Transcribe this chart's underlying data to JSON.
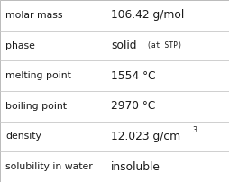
{
  "rows": [
    {
      "label": "molar mass",
      "value_plain": "106.42 g/mol",
      "type": "plain"
    },
    {
      "label": "phase",
      "value_plain": "solid",
      "type": "phase"
    },
    {
      "label": "melting point",
      "value_plain": "1554 °C",
      "type": "plain"
    },
    {
      "label": "boiling point",
      "value_plain": "2970 °C",
      "type": "plain"
    },
    {
      "label": "density",
      "value_plain": "12.023 g/cm",
      "type": "density"
    },
    {
      "label": "solubility in water",
      "value_plain": "insoluble",
      "type": "plain"
    }
  ],
  "bg_color": "#ffffff",
  "border_color": "#b0b0b0",
  "divider_color": "#c8c8c8",
  "text_color": "#1a1a1a",
  "label_fontsize": 7.8,
  "value_fontsize": 8.8,
  "col_split": 0.455,
  "fig_width": 2.54,
  "fig_height": 2.02,
  "dpi": 100
}
